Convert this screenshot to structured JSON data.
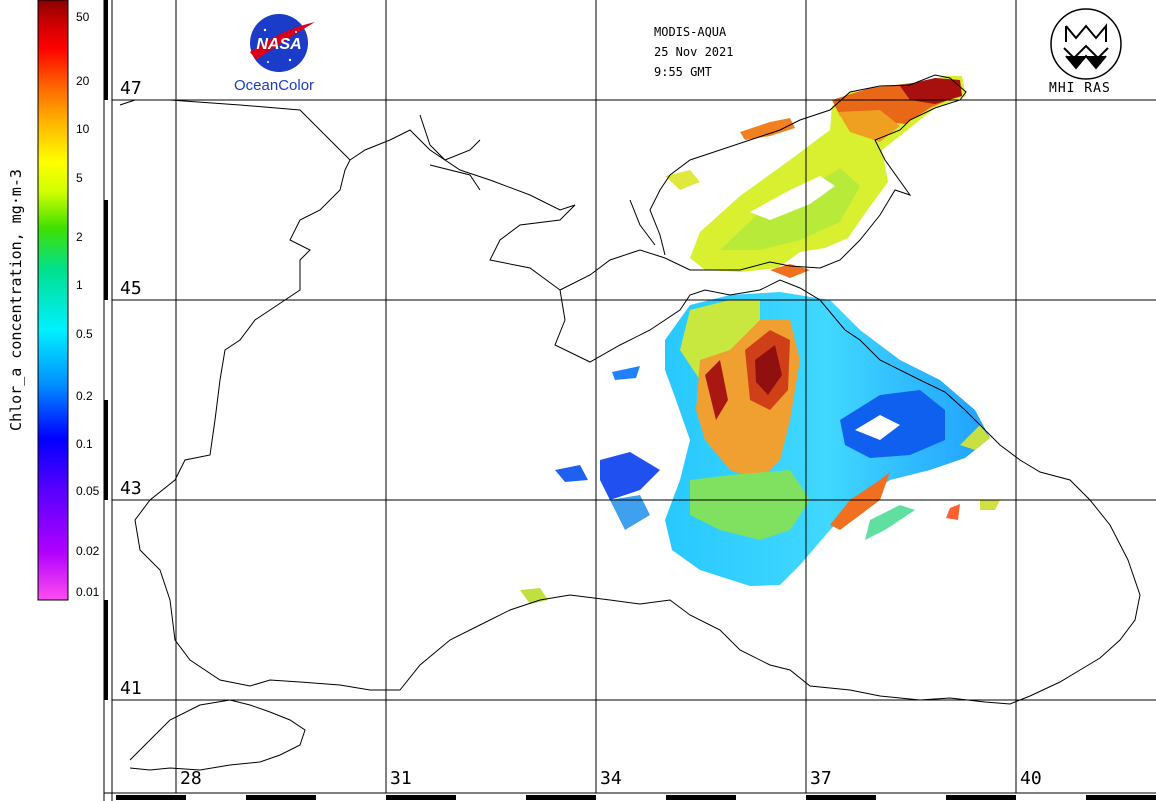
{
  "header": {
    "sensor": "MODIS-AQUA",
    "date": "25 Nov 2021",
    "time": "9:55 GMT"
  },
  "logos": {
    "left_logo_word": "NASA",
    "left_caption": "OceanColor",
    "right_caption": "MHI RAS"
  },
  "legend": {
    "title": "Chlor_a concentration, mg·m-3",
    "ticks": [
      "50",
      "20",
      "10",
      "5",
      "2",
      "1",
      "0.5",
      "0.2",
      "0.1",
      "0.05",
      "0.02",
      "0.01"
    ],
    "colors": [
      "#ff4df0",
      "#b000ff",
      "#5a00ff",
      "#0000ff",
      "#0090ff",
      "#00f0ff",
      "#00e090",
      "#40e000",
      "#d0ff00",
      "#ffff00",
      "#ffb000",
      "#ff6000",
      "#ff0000",
      "#c00000",
      "#8a0000"
    ]
  },
  "grid": {
    "latitudes": [
      "47",
      "45",
      "43",
      "41"
    ],
    "longitudes": [
      "28",
      "31",
      "34",
      "37",
      "40"
    ]
  },
  "colors": {
    "coast": "#000000",
    "grid": "#000000",
    "nasa_blue": "#1a3cc8",
    "nasa_red": "#d8001a"
  }
}
